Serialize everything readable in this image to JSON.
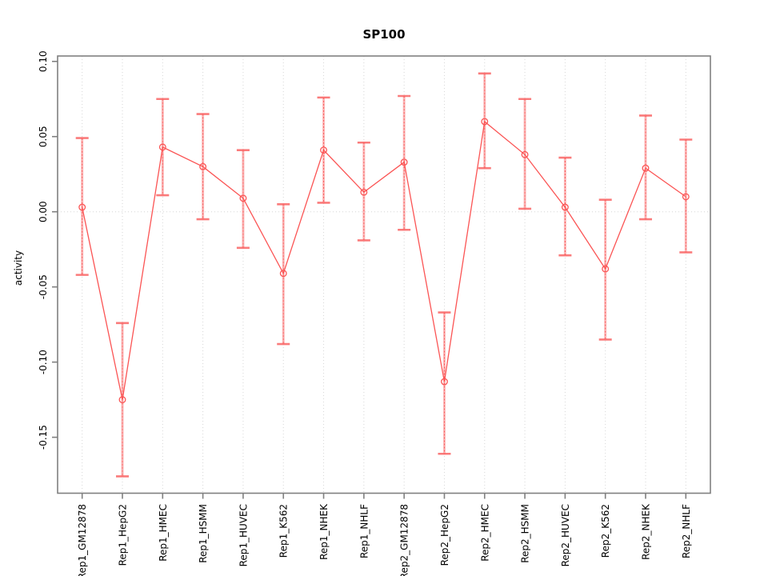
{
  "title": "SP100",
  "chart_data": {
    "type": "line",
    "title": "SP100",
    "xlabel": "",
    "ylabel": "activity",
    "categories": [
      "Rep1_GM12878",
      "Rep1_HepG2",
      "Rep1_HMEC",
      "Rep1_HSMM",
      "Rep1_HUVEC",
      "Rep1_K562",
      "Rep1_NHEK",
      "Rep1_NHLF",
      "Rep2_GM12878",
      "Rep2_HepG2",
      "Rep2_HMEC",
      "Rep2_HSMM",
      "Rep2_HUVEC",
      "Rep2_K562",
      "Rep2_NHEK",
      "Rep2_NHLF"
    ],
    "series": [
      {
        "name": "activity",
        "values": [
          0.003,
          -0.125,
          0.043,
          0.03,
          0.009,
          -0.041,
          0.041,
          0.013,
          0.033,
          -0.113,
          0.06,
          0.038,
          0.003,
          -0.038,
          0.029,
          0.01
        ],
        "ci_low": [
          -0.042,
          -0.176,
          0.011,
          -0.005,
          -0.024,
          -0.088,
          0.006,
          -0.019,
          -0.012,
          -0.161,
          0.029,
          0.002,
          -0.029,
          -0.085,
          -0.005,
          -0.027
        ],
        "ci_high": [
          0.049,
          -0.074,
          0.075,
          0.065,
          0.041,
          0.005,
          0.076,
          0.046,
          0.077,
          -0.067,
          0.092,
          0.075,
          0.036,
          0.008,
          0.064,
          0.048
        ]
      }
    ],
    "yticks": [
      "0.10",
      "0.05",
      "0.00",
      "-0.05",
      "-0.10",
      "-0.15"
    ],
    "ytick_values": [
      0.1,
      0.05,
      0.0,
      -0.05,
      -0.1,
      -0.15
    ],
    "ylim": [
      -0.1872,
      0.1036
    ],
    "grid": {
      "vertical_dotted_per_category": true,
      "horizontal_dotted_at_zero": true
    },
    "legend": "none",
    "colors": {
      "series": "#fb5454",
      "error_bar_fill": "rgba(251,84,84,0.40)",
      "error_bar_cap": "rgba(249,100,100,0.85)",
      "box": "#808080",
      "grid": "#d6d6d6",
      "text": "#000000",
      "background": "#ffffff"
    }
  }
}
